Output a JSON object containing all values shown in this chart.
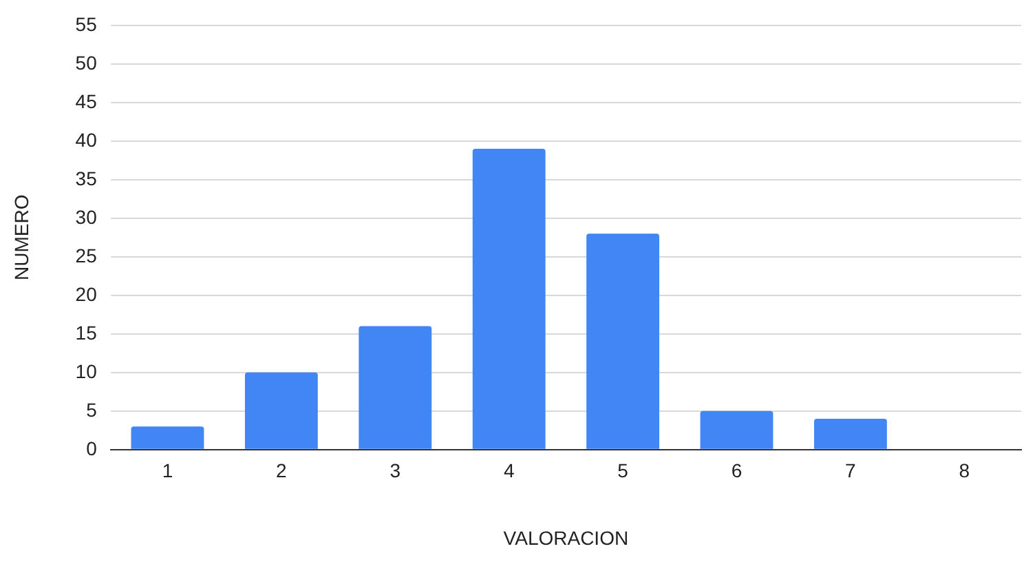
{
  "chart_data": {
    "type": "bar",
    "xlabel": "VALORACION",
    "ylabel": "NUMERO",
    "categories": [
      "1",
      "2",
      "3",
      "4",
      "5",
      "6",
      "7",
      "8"
    ],
    "values": [
      3,
      10,
      16,
      39,
      28,
      5,
      4,
      0
    ],
    "color": "#4285f4",
    "ylim": [
      0,
      55
    ],
    "yticks": [
      0,
      5,
      10,
      15,
      20,
      25,
      30,
      35,
      40,
      45,
      50,
      55
    ],
    "grid": "y",
    "legend": false
  }
}
